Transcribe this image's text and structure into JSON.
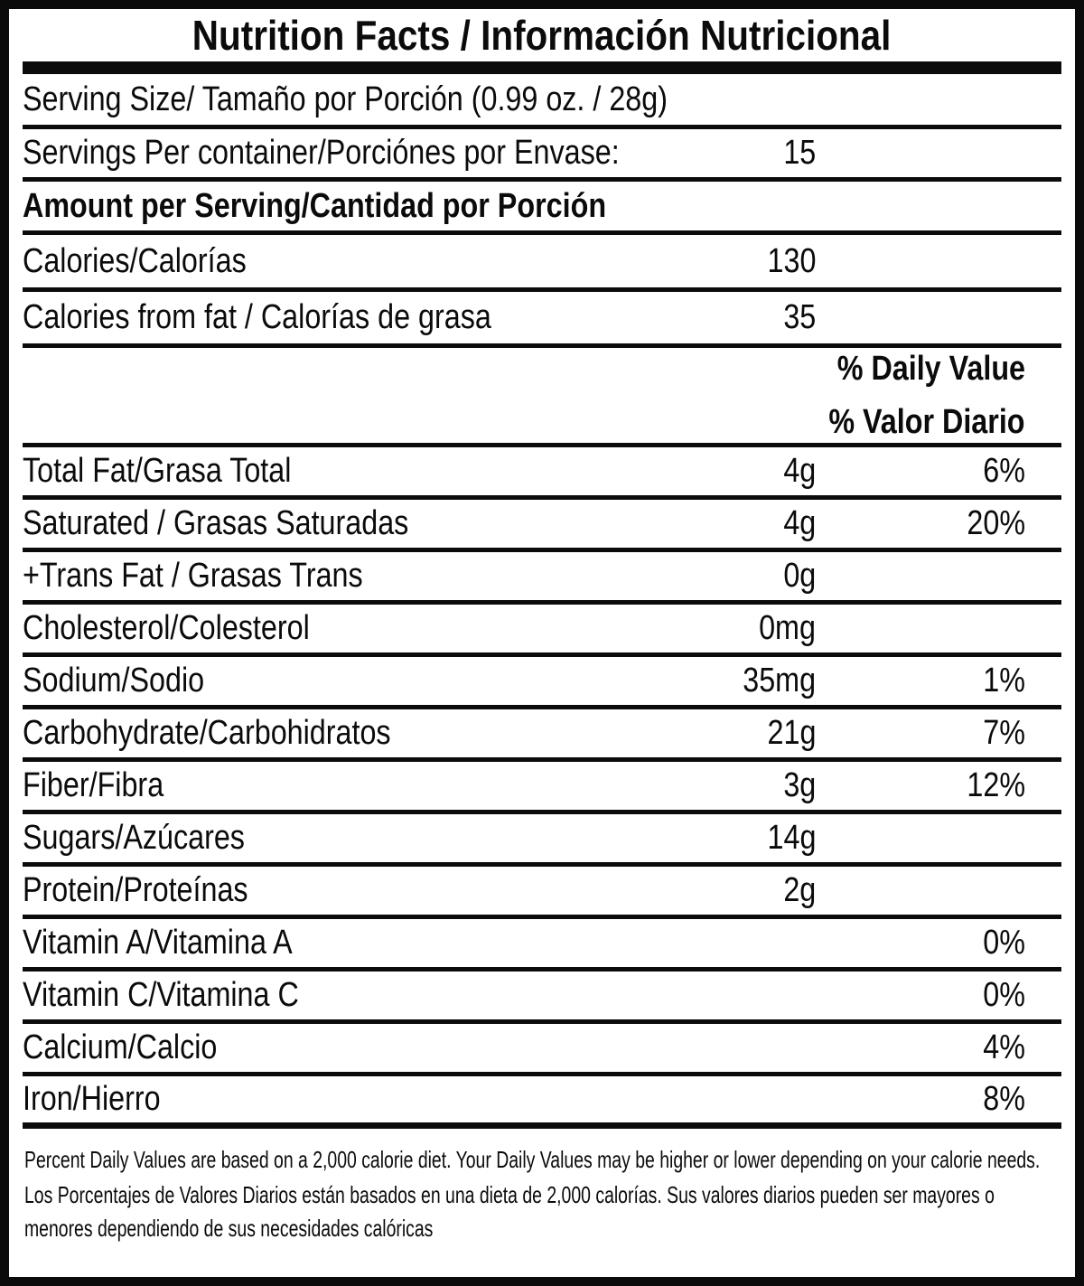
{
  "title": "Nutrition Facts / Información Nutricional",
  "serving": {
    "size_label": "Serving Size/ Tamaño por Porción  (0.99 oz. / 28g)",
    "per_container_label": "Servings Per container/Porciónes por Envase:",
    "per_container_value": "15"
  },
  "amount_per_serving_header": "Amount per Serving/Cantidad por Porción",
  "calories": {
    "label": "Calories/Calorías",
    "value": "130"
  },
  "calories_from_fat": {
    "label": "Calories from fat / Calorías de grasa",
    "value": "35"
  },
  "daily_value_header": {
    "en": "% Daily Value",
    "es": "% Valor Diario"
  },
  "nutrients": [
    {
      "label": "Total Fat/Grasa Total",
      "amount": "4g",
      "dv": "6%"
    },
    {
      "label": "Saturated / Grasas Saturadas",
      "amount": "4g",
      "dv": "20%"
    },
    {
      "label": "+Trans Fat / Grasas Trans",
      "amount": "0g",
      "dv": ""
    },
    {
      "label": "Cholesterol/Colesterol",
      "amount": "0mg",
      "dv": ""
    },
    {
      "label": "Sodium/Sodio",
      "amount": "35mg",
      "dv": "1%"
    },
    {
      "label": "Carbohydrate/Carbohidratos",
      "amount": "21g",
      "dv": "7%"
    },
    {
      "label": "Fiber/Fibra",
      "amount": "3g",
      "dv": "12%"
    },
    {
      "label": "Sugars/Azúcares",
      "amount": "14g",
      "dv": ""
    },
    {
      "label": "Protein/Proteínas",
      "amount": "2g",
      "dv": ""
    },
    {
      "label": "Vitamin A/Vitamina A",
      "amount": "",
      "dv": "0%"
    },
    {
      "label": "Vitamin C/Vitamina C",
      "amount": "",
      "dv": "0%"
    },
    {
      "label": "Calcium/Calcio",
      "amount": "",
      "dv": "4%"
    },
    {
      "label": "Iron/Hierro",
      "amount": "",
      "dv": "8%"
    }
  ],
  "footnotes": {
    "en": "Percent Daily Values are based on a 2,000 calorie diet. Your Daily Values may be higher or lower depending on your calorie needs.",
    "es": "Los Porcentajes de Valores Diarios están basados en una dieta de 2,000 calorías. Sus valores diarios pueden ser mayores o menores dependiendo de sus necesidades calóricas"
  },
  "colors": {
    "text": "#0b0b0b",
    "background": "#ffffff"
  }
}
